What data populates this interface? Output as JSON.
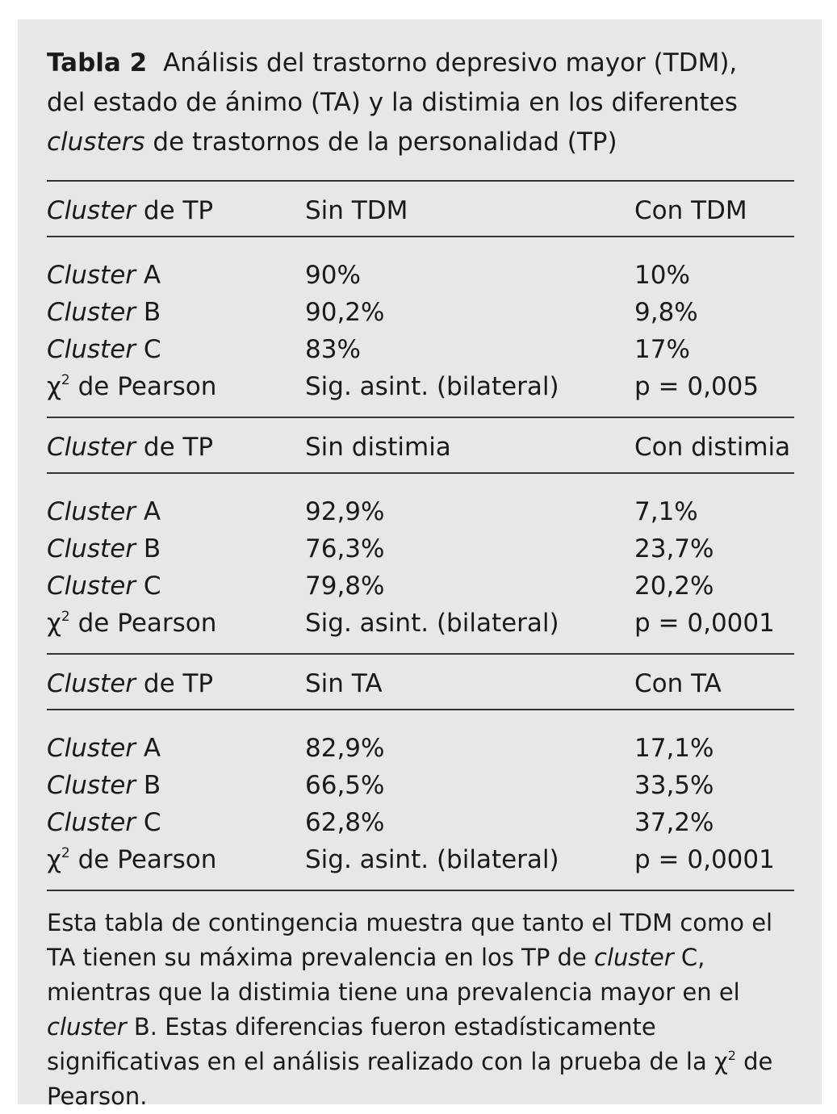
{
  "caption": {
    "label": "Tabla 2",
    "line1": "Análisis del trastorno depresivo mayor (TDM),",
    "line2": "del estado de ánimo (TA) y la distimia en los diferentes",
    "line3_italic": "clusters",
    "line3_rest": " de trastornos de la personalidad (TP)"
  },
  "common": {
    "cluster_word": "Cluster",
    "header_suffix": " de TP",
    "chi_symbol": "χ",
    "chi_sup": "2",
    "chi_rest": " de Pearson",
    "sig_label": "Sig. asint. (bilateral)"
  },
  "sections": [
    {
      "col2": "Sin TDM",
      "col3": "Con TDM",
      "rows": [
        {
          "suffix": " A",
          "v1": "90%",
          "v2": "10%"
        },
        {
          "suffix": " B",
          "v1": "90,2%",
          "v2": "9,8%"
        },
        {
          "suffix": " C",
          "v1": "83%",
          "v2": "17%"
        }
      ],
      "p_value": "p = 0,005"
    },
    {
      "col2": "Sin distimia",
      "col3": "Con distimia",
      "rows": [
        {
          "suffix": " A",
          "v1": "92,9%",
          "v2": "7,1%"
        },
        {
          "suffix": " B",
          "v1": "76,3%",
          "v2": "23,7%"
        },
        {
          "suffix": " C",
          "v1": "79,8%",
          "v2": "20,2%"
        }
      ],
      "p_value": "p = 0,0001"
    },
    {
      "col2": "Sin TA",
      "col3": "Con TA",
      "rows": [
        {
          "suffix": " A",
          "v1": "82,9%",
          "v2": "17,1%"
        },
        {
          "suffix": " B",
          "v1": "66,5%",
          "v2": "33,5%"
        },
        {
          "suffix": " C",
          "v1": "62,8%",
          "v2": "37,2%"
        }
      ],
      "p_value": "p = 0,0001"
    }
  ],
  "footnote": {
    "p1": "Esta tabla de contingencia muestra que tanto el TDM como el TA tienen su máxima prevalencia en los TP de ",
    "it1": "cluster",
    "p2": " C, mientras que la distimia tiene una prevalencia mayor en el ",
    "it2": "cluster",
    "p3": " B. Estas diferencias fueron estadísticamente significativas en el análisis realizado con la prueba de la ",
    "chi": "χ",
    "sup": "2",
    "p4": " de Pearson."
  }
}
